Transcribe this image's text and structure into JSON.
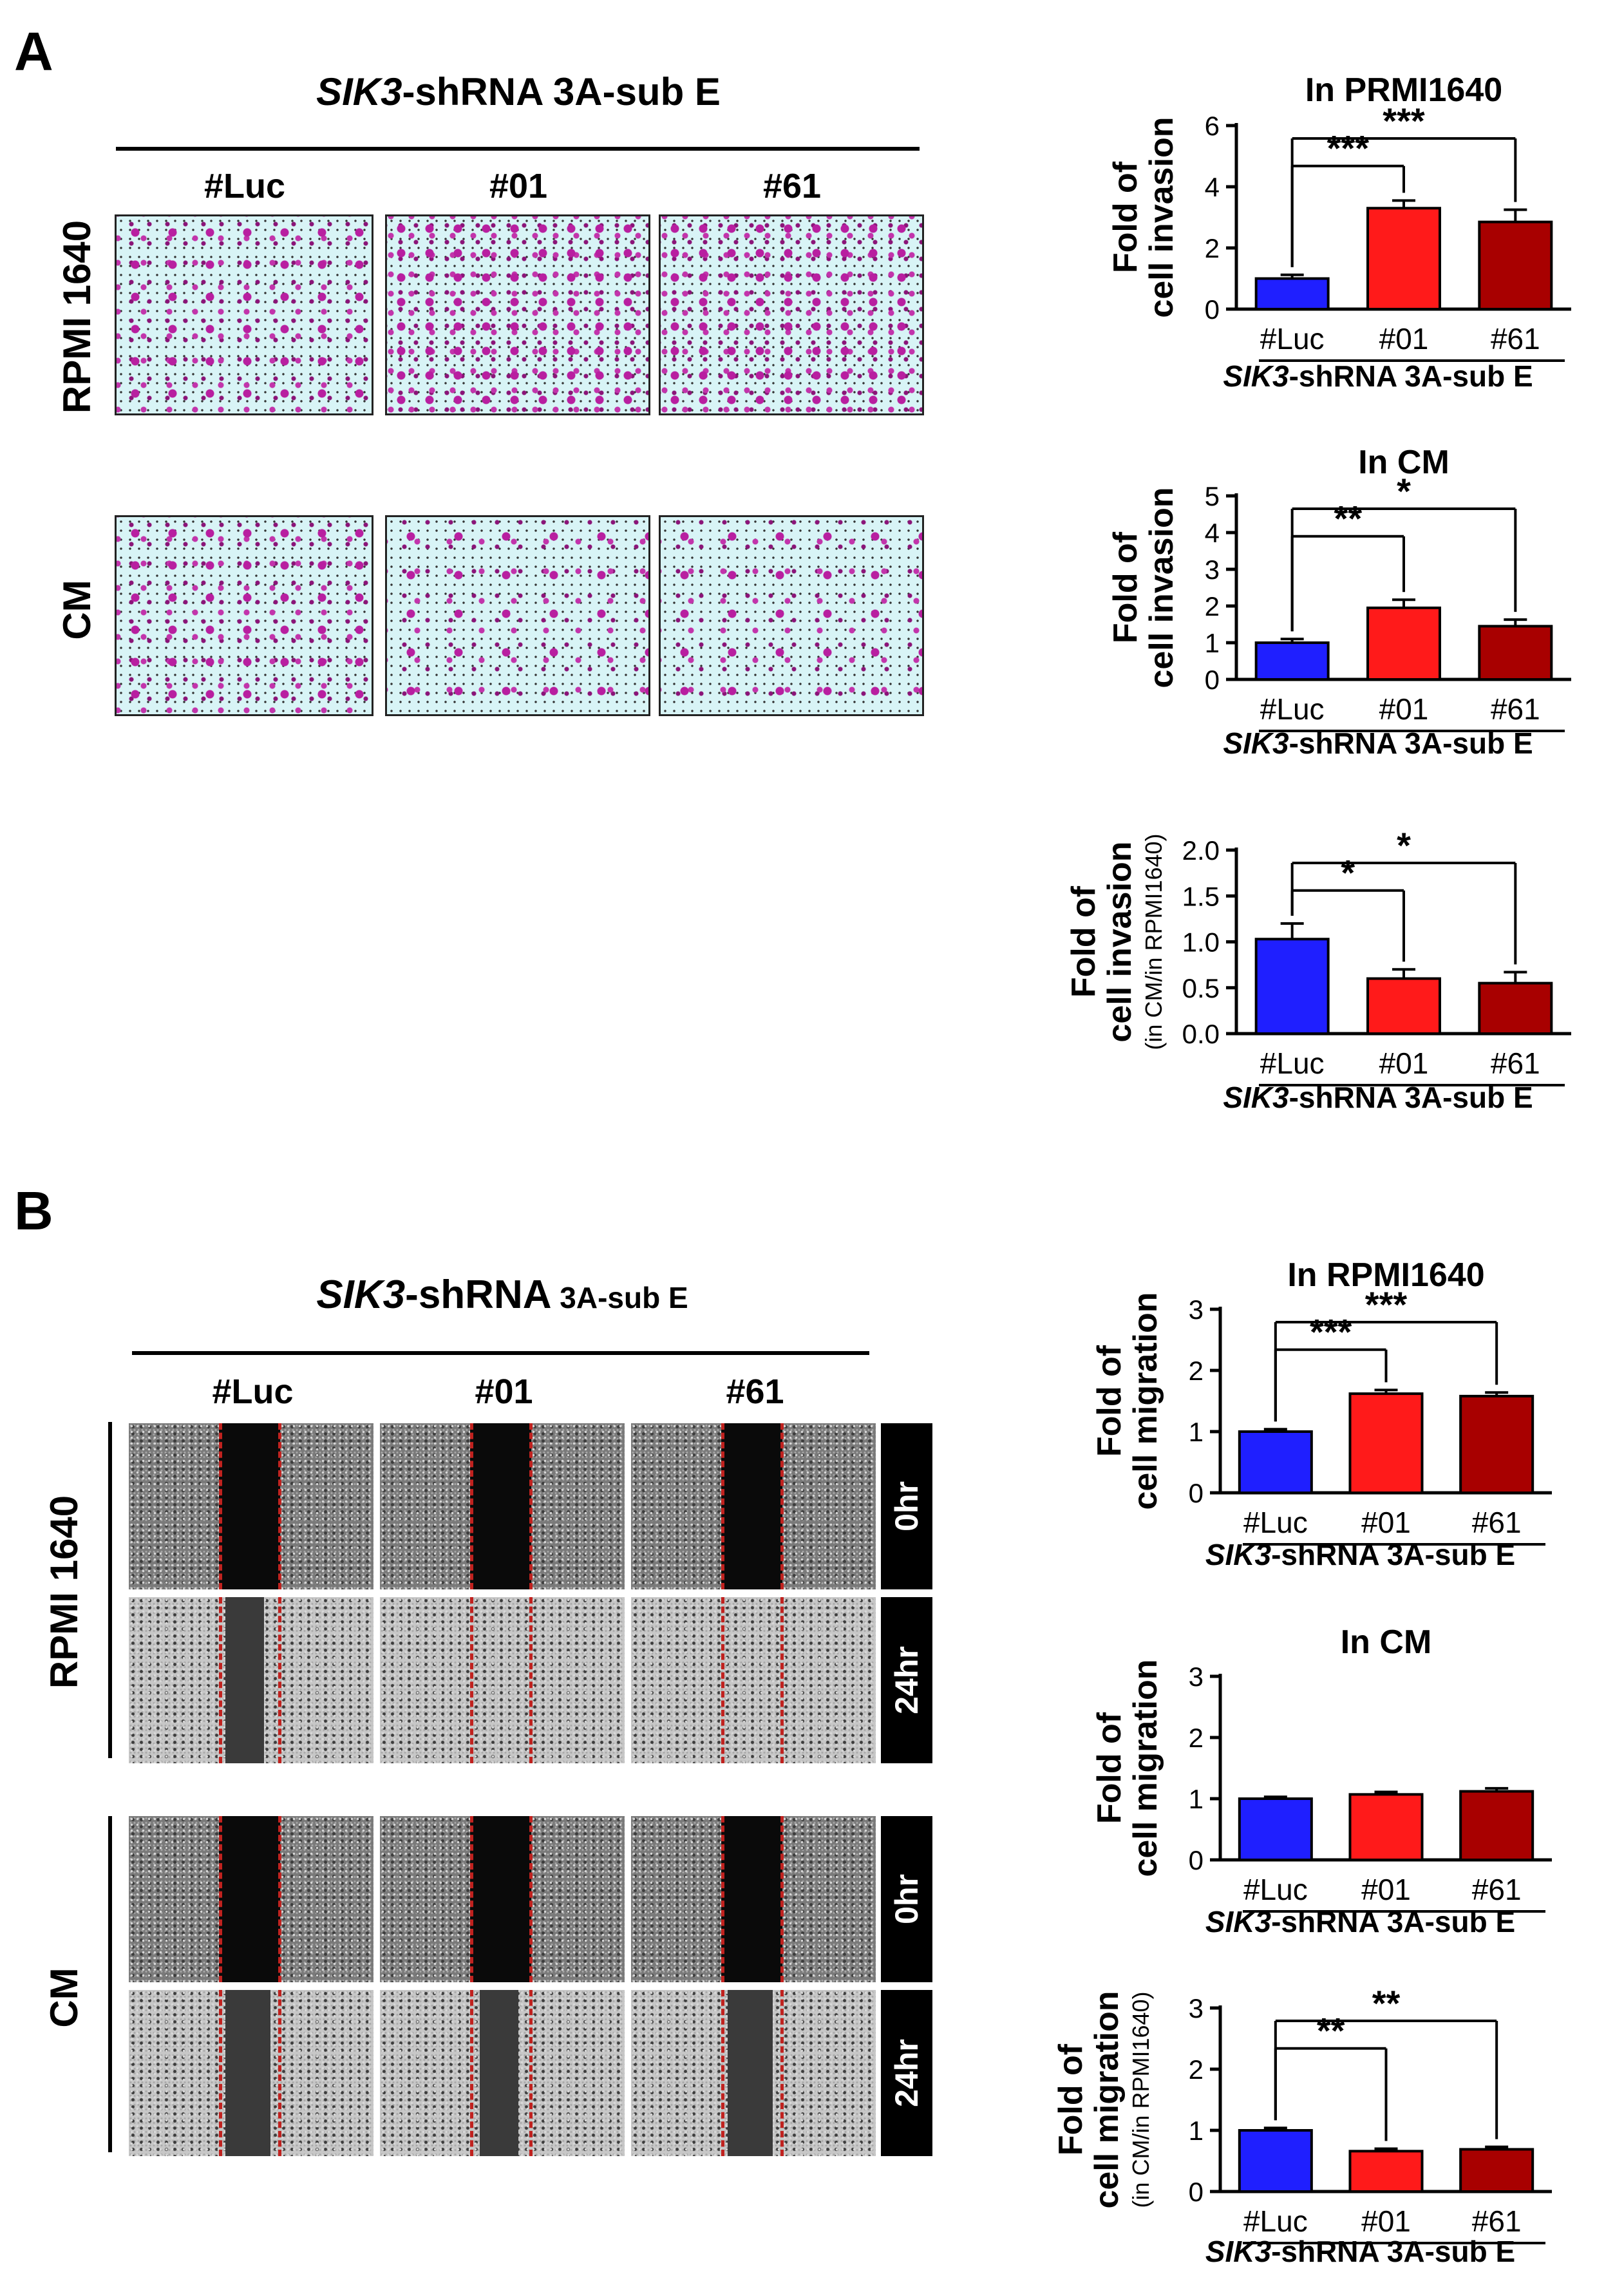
{
  "panelA": {
    "letter": "A",
    "title_gene": "SIK3",
    "title_rest": "-shRNA 3A-sub E",
    "columns": [
      "#Luc",
      "#01",
      "#61"
    ],
    "rows": [
      "RPMI 1640",
      "CM"
    ]
  },
  "panelB": {
    "letter": "B",
    "title_gene": "SIK3",
    "title_rest_big": "-shRNA",
    "title_rest_small": " 3A-sub E",
    "columns": [
      "#Luc",
      "#01",
      "#61"
    ],
    "rows": [
      "RPMI 1640",
      "CM"
    ],
    "time_labels": [
      "0hr",
      "24hr",
      "0hr",
      "24hr"
    ]
  },
  "colors": {
    "blue": "#1f1fff",
    "red": "#ff1a1a",
    "darkred": "#a80000",
    "black": "#000000"
  },
  "chart_data": [
    {
      "id": "c1",
      "type": "bar",
      "title": "In PRMI1640",
      "ylabel_lines": [
        "Fold of",
        "cell invasion"
      ],
      "ylabel_sub": "",
      "categories": [
        "#Luc",
        "#01",
        "#61"
      ],
      "values": [
        1.0,
        3.3,
        2.85
      ],
      "errors": [
        0.12,
        0.25,
        0.4
      ],
      "ylim": [
        0,
        6
      ],
      "yticks": [
        0,
        2,
        4,
        6
      ],
      "ytick_labels": [
        "0",
        "2",
        "4",
        "6"
      ],
      "xgroup_gene": "SIK3",
      "xgroup_rest": "-shRNA 3A-sub E",
      "sig": [
        {
          "from": 0,
          "to": 1,
          "label": "***",
          "level": 1
        },
        {
          "from": 0,
          "to": 2,
          "label": "***",
          "level": 2
        }
      ]
    },
    {
      "id": "c2",
      "type": "bar",
      "title": "In CM",
      "ylabel_lines": [
        "Fold of",
        "cell invasion"
      ],
      "ylabel_sub": "",
      "categories": [
        "#Luc",
        "#01",
        "#61"
      ],
      "values": [
        1.0,
        1.95,
        1.45
      ],
      "errors": [
        0.1,
        0.22,
        0.18
      ],
      "ylim": [
        0,
        5
      ],
      "yticks": [
        0,
        1,
        2,
        3,
        4,
        5
      ],
      "ytick_labels": [
        "0",
        "1",
        "2",
        "3",
        "4",
        "5"
      ],
      "xgroup_gene": "SIK3",
      "xgroup_rest": "-shRNA 3A-sub E",
      "sig": [
        {
          "from": 0,
          "to": 1,
          "label": "**",
          "level": 1
        },
        {
          "from": 0,
          "to": 2,
          "label": "*",
          "level": 2
        }
      ]
    },
    {
      "id": "c3",
      "type": "bar",
      "title": "",
      "ylabel_lines": [
        "Fold of",
        "cell invasion"
      ],
      "ylabel_sub": "(in CM/in RPMI1640)",
      "categories": [
        "#Luc",
        "#01",
        "#61"
      ],
      "values": [
        1.03,
        0.6,
        0.55
      ],
      "errors": [
        0.17,
        0.1,
        0.12
      ],
      "ylim": [
        0,
        2.0
      ],
      "yticks": [
        0,
        0.5,
        1.0,
        1.5,
        2.0
      ],
      "ytick_labels": [
        "0.0",
        "0.5",
        "1.0",
        "1.5",
        "2.0"
      ],
      "xgroup_gene": "SIK3",
      "xgroup_rest": "-shRNA 3A-sub E",
      "sig": [
        {
          "from": 0,
          "to": 1,
          "label": "*",
          "level": 1
        },
        {
          "from": 0,
          "to": 2,
          "label": "*",
          "level": 2
        }
      ]
    },
    {
      "id": "c4",
      "type": "bar",
      "title": "In RPMI1640",
      "ylabel_lines": [
        "Fold of",
        "cell migration"
      ],
      "ylabel_sub": "",
      "categories": [
        "#Luc",
        "#01",
        "#61"
      ],
      "values": [
        1.0,
        1.62,
        1.58
      ],
      "errors": [
        0.04,
        0.06,
        0.06
      ],
      "ylim": [
        0,
        3
      ],
      "yticks": [
        0,
        1,
        2,
        3
      ],
      "ytick_labels": [
        "0",
        "1",
        "2",
        "3"
      ],
      "xgroup_gene": "SIK3",
      "xgroup_rest": "-shRNA 3A-sub E",
      "sig": [
        {
          "from": 0,
          "to": 1,
          "label": "***",
          "level": 1
        },
        {
          "from": 0,
          "to": 2,
          "label": "***",
          "level": 2
        }
      ]
    },
    {
      "id": "c5",
      "type": "bar",
      "title": "In CM",
      "ylabel_lines": [
        "Fold of",
        "cell migration"
      ],
      "ylabel_sub": "",
      "categories": [
        "#Luc",
        "#01",
        "#61"
      ],
      "values": [
        1.0,
        1.07,
        1.12
      ],
      "errors": [
        0.03,
        0.04,
        0.05
      ],
      "ylim": [
        0,
        3
      ],
      "yticks": [
        0,
        1,
        2,
        3
      ],
      "ytick_labels": [
        "0",
        "1",
        "2",
        "3"
      ],
      "xgroup_gene": "SIK3",
      "xgroup_rest": "-shRNA 3A-sub E",
      "sig": []
    },
    {
      "id": "c6",
      "type": "bar",
      "title": "",
      "ylabel_lines": [
        "Fold of",
        "cell migration"
      ],
      "ylabel_sub": "(in CM/in RPMI1640)",
      "categories": [
        "#Luc",
        "#01",
        "#61"
      ],
      "values": [
        1.0,
        0.66,
        0.69
      ],
      "errors": [
        0.04,
        0.04,
        0.04
      ],
      "ylim": [
        0,
        3
      ],
      "yticks": [
        0,
        1,
        2,
        3
      ],
      "ytick_labels": [
        "0",
        "1",
        "2",
        "3"
      ],
      "xgroup_gene": "SIK3",
      "xgroup_rest": "-shRNA 3A-sub E",
      "sig": [
        {
          "from": 0,
          "to": 1,
          "label": "**",
          "level": 1
        },
        {
          "from": 0,
          "to": 2,
          "label": "**",
          "level": 2
        }
      ]
    }
  ]
}
